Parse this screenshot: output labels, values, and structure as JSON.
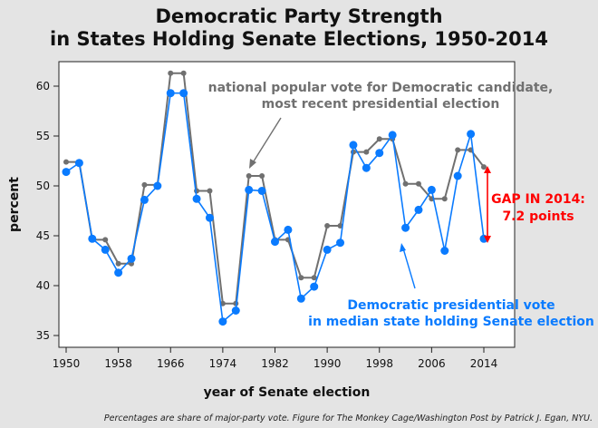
{
  "chart_data": {
    "type": "line",
    "title": [
      "Democratic Party Strength",
      "in States Holding Senate Elections, 1950-2014"
    ],
    "xlabel": "year of Senate election",
    "ylabel": "percent",
    "xlim": [
      1948,
      2020
    ],
    "ylim": [
      34,
      62.5
    ],
    "xticks": [
      1950,
      1958,
      1966,
      1974,
      1982,
      1990,
      1998,
      2006,
      2014
    ],
    "yticks": [
      35,
      40,
      45,
      50,
      55,
      60
    ],
    "x": [
      1950,
      1952,
      1954,
      1956,
      1958,
      1960,
      1962,
      1964,
      1966,
      1968,
      1970,
      1972,
      1974,
      1976,
      1978,
      1980,
      1982,
      1984,
      1986,
      1988,
      1990,
      1992,
      1994,
      1996,
      1998,
      2000,
      2002,
      2004,
      2006,
      2008,
      2010,
      2012,
      2014
    ],
    "series": [
      {
        "name": "national popular vote for Democratic candidate, most recent presidential election",
        "color": "#707070",
        "values": [
          52.4,
          52.4,
          44.6,
          44.6,
          42.2,
          42.2,
          50.1,
          50.1,
          61.3,
          61.3,
          49.5,
          49.5,
          38.2,
          38.2,
          51.0,
          51.0,
          44.6,
          44.6,
          40.8,
          40.8,
          46.0,
          46.0,
          53.4,
          53.4,
          54.7,
          54.7,
          50.2,
          50.2,
          48.7,
          48.7,
          53.6,
          53.6,
          51.9
        ]
      },
      {
        "name": "Democratic presidential vote in median state holding Senate election",
        "color": "#0a7bff",
        "values": [
          51.4,
          52.3,
          44.7,
          43.6,
          41.3,
          42.7,
          48.6,
          50.0,
          59.3,
          59.3,
          48.7,
          46.8,
          36.4,
          37.5,
          49.6,
          49.5,
          44.4,
          45.6,
          38.7,
          39.9,
          43.6,
          44.3,
          54.1,
          51.8,
          53.3,
          55.1,
          45.8,
          47.6,
          49.6,
          43.5,
          51.0,
          55.2,
          44.7
        ]
      }
    ],
    "annotations": {
      "national_label": [
        "national popular vote for Democratic candidate,",
        "most recent presidential election"
      ],
      "median_label": [
        "Democratic presidential vote",
        "in median state holding Senate election"
      ],
      "gap_label": [
        "GAP IN 2014:",
        "7.2 points"
      ],
      "gap_color": "#ff0000"
    },
    "grid": false,
    "legend": "none"
  },
  "footer": "Percentages are share of major-party vote. Figure for The Monkey Cage/Washington Post by Patrick J. Egan, NYU."
}
